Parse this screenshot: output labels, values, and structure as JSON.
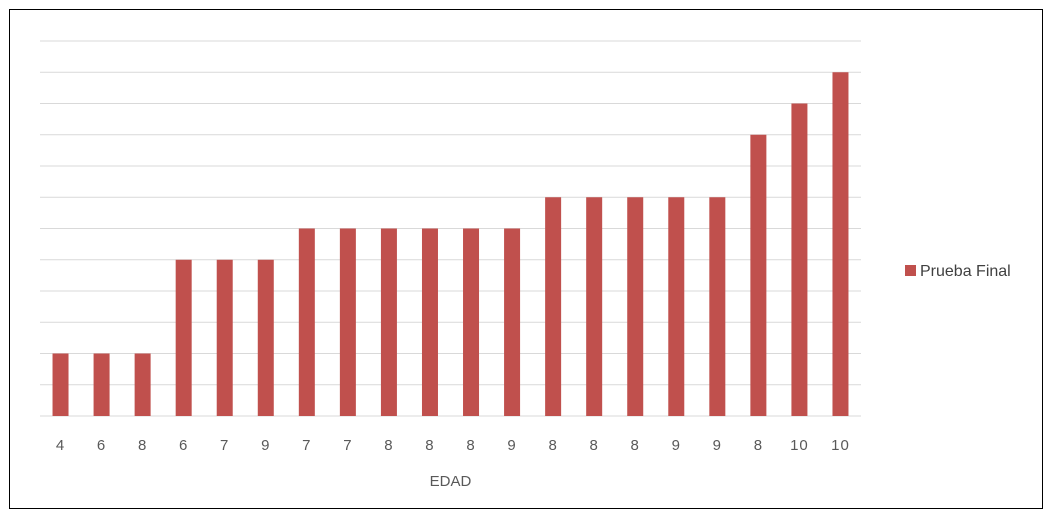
{
  "chart_data": {
    "type": "bar",
    "categories": [
      "4",
      "6",
      "8",
      "6",
      "7",
      "9",
      "7",
      "7",
      "8",
      "8",
      "8",
      "9",
      "8",
      "8",
      "8",
      "9",
      "9",
      "8",
      "10",
      "10"
    ],
    "series": [
      {
        "name": "Prueba Final",
        "values": [
          2,
          2,
          2,
          5,
          5,
          5,
          6,
          6,
          6,
          6,
          6,
          6,
          7,
          7,
          7,
          7,
          7,
          9,
          10,
          11
        ]
      }
    ],
    "title": "",
    "xlabel": "EDAD",
    "ylabel": "",
    "ylim": [
      0,
      12
    ],
    "grid": true,
    "legend": "right",
    "color": "#c0504d",
    "gridline_color": "#d9d9d9"
  }
}
